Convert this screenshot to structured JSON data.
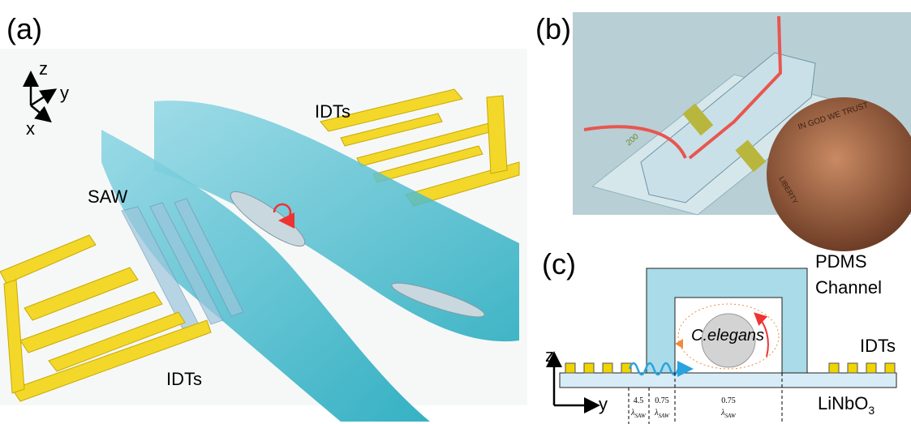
{
  "panel_a": {
    "label": "(a)",
    "axes": {
      "z": "z",
      "y": "y",
      "x": "x"
    },
    "idts_top": "IDTs",
    "saw": "SAW",
    "idts_bottom": "IDTs"
  },
  "panel_b": {
    "label": "(b)",
    "chip_marking": "200",
    "coin_motto": "IN GOD WE TRUST",
    "coin_word": "LIBERTY"
  },
  "panel_c": {
    "label": "(c)",
    "channel": [
      "PDMS",
      "Channel"
    ],
    "organism": "C.elegans",
    "idts": "IDTs",
    "axes": {
      "z": "z",
      "y": "y"
    },
    "substrate": {
      "text": "LiNbO",
      "subscript": "3"
    },
    "spacings": [
      {
        "value": 4.5,
        "symbol": "λ",
        "subscript": "SAW"
      },
      {
        "value": 0.75,
        "symbol": "λ",
        "subscript": "SAW"
      },
      {
        "value": 0.75,
        "symbol": "λ",
        "subscript": "SAW"
      }
    ]
  }
}
